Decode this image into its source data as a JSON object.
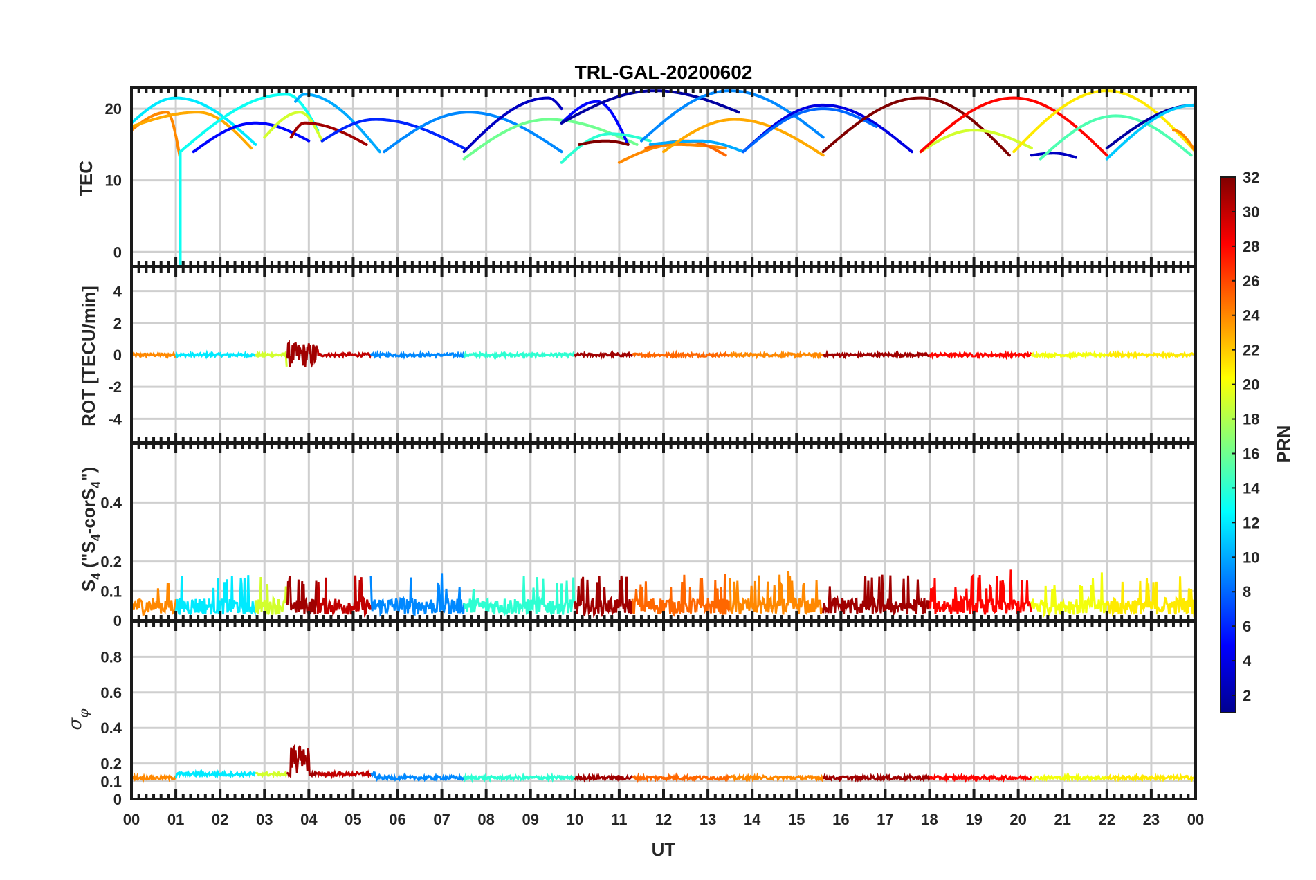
{
  "chart_data": {
    "type": "line",
    "title": "TRL-GAL-20200602",
    "xlabel": "UT",
    "x_tick_labels": [
      "00",
      "01",
      "02",
      "03",
      "04",
      "05",
      "06",
      "07",
      "08",
      "09",
      "10",
      "11",
      "12",
      "13",
      "14",
      "15",
      "16",
      "17",
      "18",
      "19",
      "20",
      "21",
      "22",
      "23",
      "00"
    ],
    "xlim_hours": [
      0,
      24
    ],
    "colorbar": {
      "label": "PRN",
      "range": [
        1,
        32
      ],
      "tick_labels": [
        "32",
        "30",
        "28",
        "26",
        "24",
        "22",
        "20",
        "18",
        "16",
        "14",
        "12",
        "10",
        "8",
        "6",
        "4",
        "2"
      ],
      "tick_values": [
        32,
        30,
        28,
        26,
        24,
        22,
        20,
        18,
        16,
        14,
        12,
        10,
        8,
        6,
        4,
        2
      ]
    },
    "panels": [
      {
        "id": "tec",
        "ylabel": "TEC",
        "ylim": [
          -2,
          23
        ],
        "yticks": [
          0,
          10,
          20
        ],
        "ytick_labels": [
          "0",
          "10",
          "20"
        ],
        "arcs": [
          {
            "prn": 12,
            "start": 0.0,
            "end": 2.8,
            "peak_t": 1.0,
            "peak": 21.5,
            "v0": 18.0,
            "v1": 15.0
          },
          {
            "prn": 24,
            "start": 0.0,
            "end": 1.1,
            "peak_t": 0.8,
            "peak": 19.5,
            "v0": 17.0,
            "v1": 13.0
          },
          {
            "prn": 23,
            "start": 0.0,
            "end": 2.7,
            "peak_t": 1.5,
            "peak": 19.5,
            "v0": 17.5,
            "v1": 14.5
          },
          {
            "prn": 13,
            "start": 1.1,
            "end": 4.2,
            "peak_t": 3.5,
            "peak": 22.0,
            "v0": 14.0,
            "v1": 17.0
          },
          {
            "prn": 5,
            "start": 1.4,
            "end": 4.0,
            "peak_t": 2.8,
            "peak": 18.0,
            "v0": 14.0,
            "v1": 15.5
          },
          {
            "prn": 19,
            "start": 3.0,
            "end": 4.3,
            "peak_t": 3.8,
            "peak": 19.5,
            "v0": 16.0,
            "v1": 15.5
          },
          {
            "prn": 31,
            "start": 3.6,
            "end": 5.3,
            "peak_t": 3.9,
            "peak": 18.0,
            "v0": 16.0,
            "v1": 15.0
          },
          {
            "prn": 10,
            "start": 3.7,
            "end": 5.6,
            "peak_t": 3.9,
            "peak": 22.0,
            "v0": 21.0,
            "v1": 14.0
          },
          {
            "prn": 6,
            "start": 4.3,
            "end": 7.5,
            "peak_t": 5.5,
            "peak": 18.5,
            "v0": 15.5,
            "v1": 14.5
          },
          {
            "prn": 9,
            "start": 5.7,
            "end": 9.7,
            "peak_t": 7.6,
            "peak": 19.5,
            "v0": 14.0,
            "v1": 14.0
          },
          {
            "prn": 16,
            "start": 7.5,
            "end": 11.4,
            "peak_t": 9.4,
            "peak": 18.5,
            "v0": 13.0,
            "v1": 15.0
          },
          {
            "prn": 3,
            "start": 7.5,
            "end": 9.7,
            "peak_t": 9.4,
            "peak": 21.5,
            "v0": 14.0,
            "v1": 20.0
          },
          {
            "prn": 5,
            "start": 9.7,
            "end": 11.2,
            "peak_t": 10.5,
            "peak": 21.0,
            "v0": 18.0,
            "v1": 15.0
          },
          {
            "prn": 2,
            "start": 9.7,
            "end": 13.7,
            "peak_t": 11.8,
            "peak": 22.5,
            "v0": 18.0,
            "v1": 19.5
          },
          {
            "prn": 14,
            "start": 9.7,
            "end": 11.7,
            "peak_t": 10.8,
            "peak": 16.5,
            "v0": 12.5,
            "v1": 15.5
          },
          {
            "prn": 32,
            "start": 10.1,
            "end": 11.2,
            "peak_t": 10.7,
            "peak": 15.5,
            "v0": 15.0,
            "v1": 15.0
          },
          {
            "prn": 24,
            "start": 11.0,
            "end": 13.4,
            "peak_t": 12.3,
            "peak": 15.0,
            "v0": 12.5,
            "v1": 14.5
          },
          {
            "prn": 25,
            "start": 11.6,
            "end": 13.4,
            "peak_t": 12.5,
            "peak": 15.5,
            "v0": 14.5,
            "v1": 13.5
          },
          {
            "prn": 10,
            "start": 11.7,
            "end": 13.8,
            "peak_t": 12.8,
            "peak": 15.5,
            "v0": 15.0,
            "v1": 14.0
          },
          {
            "prn": 9,
            "start": 11.5,
            "end": 15.6,
            "peak_t": 13.5,
            "peak": 22.5,
            "v0": 15.5,
            "v1": 16.0
          },
          {
            "prn": 23,
            "start": 12.0,
            "end": 15.6,
            "peak_t": 13.6,
            "peak": 18.5,
            "v0": 14.0,
            "v1": 13.5
          },
          {
            "prn": 4,
            "start": 13.8,
            "end": 17.6,
            "peak_t": 15.6,
            "peak": 20.5,
            "v0": 14.0,
            "v1": 14.0
          },
          {
            "prn": 8,
            "start": 13.8,
            "end": 16.8,
            "peak_t": 15.6,
            "peak": 20.0,
            "v0": 14.0,
            "v1": 17.5
          },
          {
            "prn": 32,
            "start": 15.6,
            "end": 19.8,
            "peak_t": 17.8,
            "peak": 21.5,
            "v0": 14.0,
            "v1": 13.5
          },
          {
            "prn": 19,
            "start": 17.8,
            "end": 20.3,
            "peak_t": 19.0,
            "peak": 17.0,
            "v0": 14.0,
            "v1": 14.5
          },
          {
            "prn": 28,
            "start": 17.8,
            "end": 22.0,
            "peak_t": 19.9,
            "peak": 21.5,
            "v0": 14.0,
            "v1": 13.5
          },
          {
            "prn": 3,
            "start": 20.3,
            "end": 21.3,
            "peak_t": 20.8,
            "peak": 13.8,
            "v0": 13.5,
            "v1": 13.2
          },
          {
            "prn": 15,
            "start": 20.5,
            "end": 23.9,
            "peak_t": 22.2,
            "peak": 19.0,
            "v0": 13.0,
            "v1": 13.5
          },
          {
            "prn": 21,
            "start": 19.9,
            "end": 24.0,
            "peak_t": 22.0,
            "peak": 22.5,
            "v0": 14.0,
            "v1": 14.0
          },
          {
            "prn": 2,
            "start": 22.0,
            "end": 24.0,
            "peak_t": 24.0,
            "peak": 20.5,
            "v0": 14.5,
            "v1": 20.5
          },
          {
            "prn": 11,
            "start": 22.0,
            "end": 24.0,
            "peak_t": 24.0,
            "peak": 20.5,
            "v0": 13.0,
            "v1": 20.5
          },
          {
            "prn": 24,
            "start": 23.5,
            "end": 24.0,
            "peak_t": 23.5,
            "peak": 17.0,
            "v0": 17.0,
            "v1": 14.0
          }
        ],
        "spike": {
          "prn": 13,
          "t": 1.1,
          "low": -2.5
        }
      },
      {
        "id": "rot",
        "ylabel": "ROT [TECU/min]",
        "ylim": [
          -5.5,
          5.5
        ],
        "yticks": [
          -4,
          -2,
          0,
          2,
          4
        ],
        "ytick_labels": [
          "-4",
          "-2",
          "0",
          "2",
          "4"
        ],
        "noise_amplitude": 0.1,
        "disturbance": {
          "start": 3.5,
          "end": 4.2,
          "amplitude": 0.8
        }
      },
      {
        "id": "s4",
        "ylabel": "S4 (\"S4-corS4\")",
        "ylim": [
          0,
          0.6
        ],
        "yticks": [
          0,
          0.1,
          0.2,
          0.4
        ],
        "ytick_labels": [
          "0",
          "0.1",
          "0.2",
          "0.4"
        ],
        "baseline": 0.05,
        "max_spike": 0.18
      },
      {
        "id": "sigma_phi",
        "ylabel": "σφ",
        "ylim": [
          0,
          1.0
        ],
        "yticks": [
          0,
          0.1,
          0.2,
          0.4,
          0.6,
          0.8
        ],
        "ytick_labels": [
          "0",
          "0.1",
          "0.2",
          "0.4",
          "0.6",
          "0.8"
        ],
        "baseline": 0.12,
        "disturbance": {
          "start": 3.6,
          "end": 4.0,
          "peak": 0.28
        }
      }
    ],
    "timeline_prn": [
      {
        "start": 0.0,
        "end": 1.0,
        "prn": 24
      },
      {
        "start": 1.0,
        "end": 2.8,
        "prn": 12
      },
      {
        "start": 2.8,
        "end": 3.5,
        "prn": 19
      },
      {
        "start": 3.5,
        "end": 4.2,
        "prn": 31
      },
      {
        "start": 4.2,
        "end": 5.4,
        "prn": 30
      },
      {
        "start": 5.4,
        "end": 7.5,
        "prn": 9
      },
      {
        "start": 7.5,
        "end": 10.0,
        "prn": 14
      },
      {
        "start": 10.0,
        "end": 11.3,
        "prn": 31
      },
      {
        "start": 11.3,
        "end": 13.5,
        "prn": 25
      },
      {
        "start": 13.5,
        "end": 15.6,
        "prn": 24
      },
      {
        "start": 15.6,
        "end": 18.0,
        "prn": 31
      },
      {
        "start": 18.0,
        "end": 20.3,
        "prn": 28
      },
      {
        "start": 20.3,
        "end": 22.0,
        "prn": 20
      },
      {
        "start": 22.0,
        "end": 24.0,
        "prn": 21
      }
    ]
  }
}
